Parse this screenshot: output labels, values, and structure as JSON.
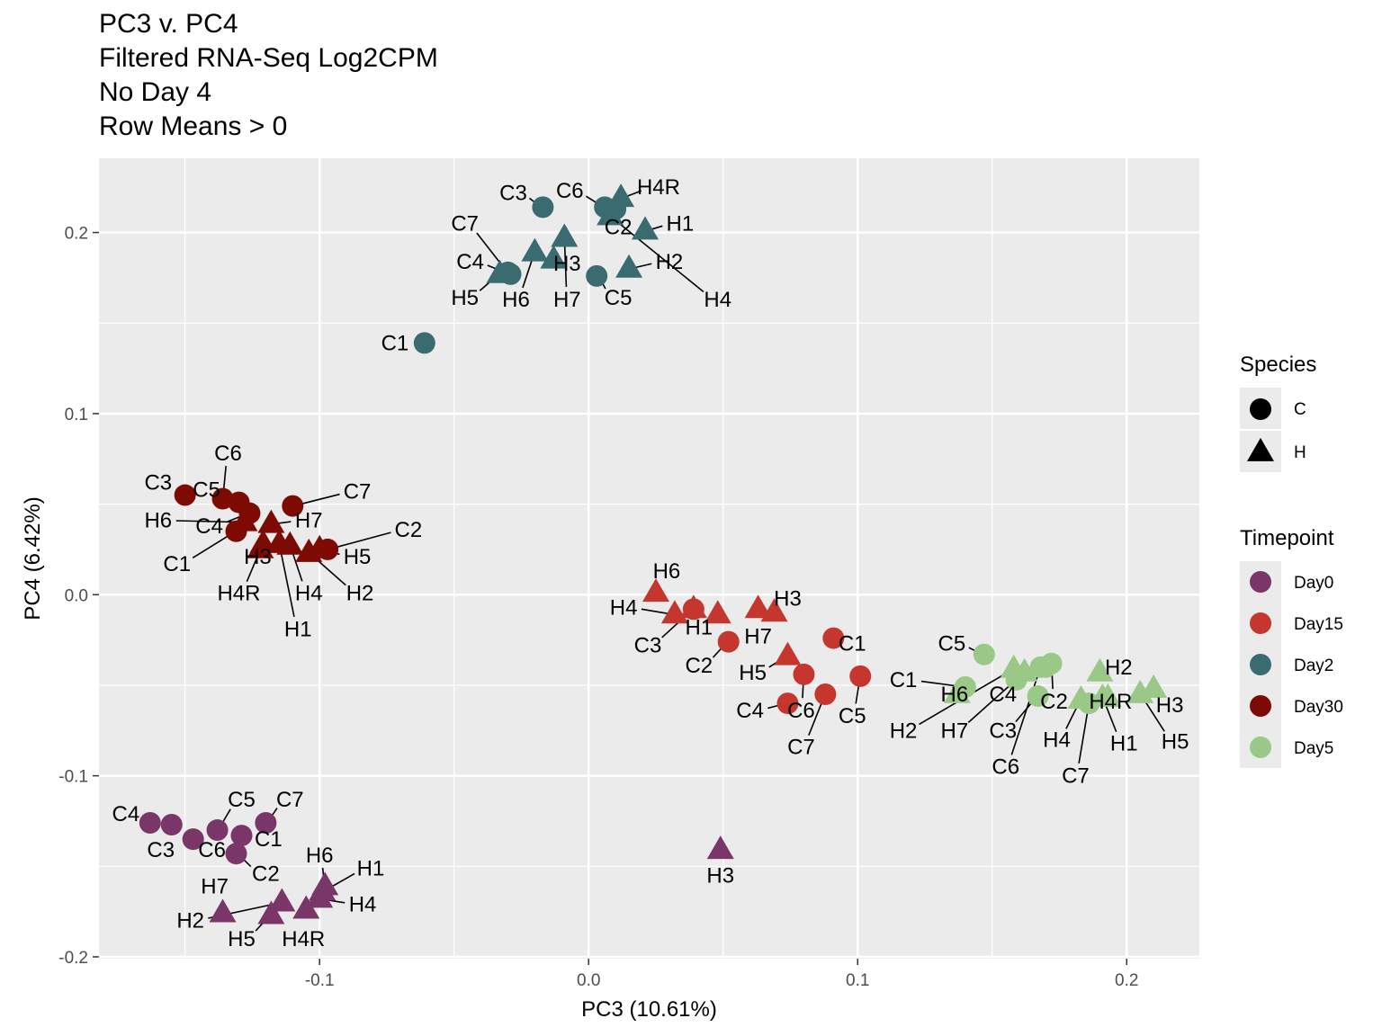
{
  "title_lines": [
    "PC3 v. PC4",
    "Filtered RNA-Seq Log2CPM",
    "No Day 4",
    "Row Means > 0"
  ],
  "colors": {
    "Day0": "#7a3569",
    "Day15": "#c5362e",
    "Day2": "#3a6b71",
    "Day30": "#7d0b04",
    "Day5": "#99c887",
    "panel": "#ebebeb",
    "grid": "#ffffff",
    "legend_key_bg": "#ebebeb"
  },
  "chart_data": {
    "type": "scatter",
    "xlabel": "PC3 (10.61%)",
    "ylabel": "PC4 (6.42%)",
    "xlim": [
      -0.182,
      0.227
    ],
    "ylim": [
      -0.201,
      0.241
    ],
    "xticks": [
      -0.1,
      0.0,
      0.1,
      0.2
    ],
    "xtick_labels": [
      "-0.1",
      "0.0",
      "0.1",
      "0.2"
    ],
    "yticks": [
      -0.2,
      -0.1,
      0.0,
      0.1,
      0.2
    ],
    "ytick_labels": [
      "-0.2",
      "-0.1",
      "0.0",
      "0.1",
      "0.2"
    ],
    "grid": true,
    "legend_position": "right",
    "legends": [
      {
        "title": "Species",
        "entries": [
          {
            "label": "C",
            "shape": "circle"
          },
          {
            "label": "H",
            "shape": "triangle"
          }
        ]
      },
      {
        "title": "Timepoint",
        "entries": [
          {
            "label": "Day0",
            "color_key": "Day0"
          },
          {
            "label": "Day15",
            "color_key": "Day15"
          },
          {
            "label": "Day2",
            "color_key": "Day2"
          },
          {
            "label": "Day30",
            "color_key": "Day30"
          },
          {
            "label": "Day5",
            "color_key": "Day5"
          }
        ]
      }
    ],
    "points": [
      {
        "label": "C3",
        "species": "C",
        "timepoint": "Day2",
        "x": -0.017,
        "y": 0.214,
        "lx": -0.028,
        "ly": 0.222
      },
      {
        "label": "C6",
        "species": "C",
        "timepoint": "Day2",
        "x": 0.006,
        "y": 0.214,
        "lx": -0.007,
        "ly": 0.223
      },
      {
        "label": "H4R",
        "species": "H",
        "timepoint": "Day2",
        "x": 0.012,
        "y": 0.219,
        "lx": 0.026,
        "ly": 0.225
      },
      {
        "label": "C2",
        "species": "C",
        "timepoint": "Day2",
        "x": 0.01,
        "y": 0.213,
        "lx": 0.011,
        "ly": 0.203
      },
      {
        "label": "H1",
        "species": "H",
        "timepoint": "Day2",
        "x": 0.021,
        "y": 0.201,
        "lx": 0.034,
        "ly": 0.205
      },
      {
        "label": "C7",
        "species": "C",
        "timepoint": "Day2",
        "x": -0.03,
        "y": 0.178,
        "lx": -0.046,
        "ly": 0.205
      },
      {
        "label": "H6",
        "species": "H",
        "timepoint": "Day2",
        "x": -0.02,
        "y": 0.189,
        "lx": -0.027,
        "ly": 0.163
      },
      {
        "label": "H7",
        "species": "H",
        "timepoint": "Day2",
        "x": -0.009,
        "y": 0.197,
        "lx": -0.008,
        "ly": 0.163
      },
      {
        "label": "C4",
        "species": "C",
        "timepoint": "Day2",
        "x": -0.029,
        "y": 0.177,
        "lx": -0.044,
        "ly": 0.184
      },
      {
        "label": "H5",
        "species": "H",
        "timepoint": "Day2",
        "x": -0.033,
        "y": 0.177,
        "lx": -0.046,
        "ly": 0.164
      },
      {
        "label": "H3",
        "species": "H",
        "timepoint": "Day2",
        "x": -0.013,
        "y": 0.185,
        "lx": -0.008,
        "ly": 0.183
      },
      {
        "label": "C5",
        "species": "C",
        "timepoint": "Day2",
        "x": 0.003,
        "y": 0.176,
        "lx": 0.011,
        "ly": 0.164
      },
      {
        "label": "H2",
        "species": "H",
        "timepoint": "Day2",
        "x": 0.015,
        "y": 0.18,
        "lx": 0.03,
        "ly": 0.184
      },
      {
        "label": "H4",
        "species": "H",
        "timepoint": "Day2",
        "x": 0.008,
        "y": 0.209,
        "lx": 0.048,
        "ly": 0.163
      },
      {
        "label": "C1",
        "species": "C",
        "timepoint": "Day2",
        "x": -0.061,
        "y": 0.139,
        "lx": -0.072,
        "ly": 0.139
      },
      {
        "label": "C3",
        "species": "C",
        "timepoint": "Day30",
        "x": -0.15,
        "y": 0.055,
        "lx": -0.16,
        "ly": 0.062
      },
      {
        "label": "C6",
        "species": "C",
        "timepoint": "Day30",
        "x": -0.136,
        "y": 0.053,
        "lx": -0.134,
        "ly": 0.078
      },
      {
        "label": "C5",
        "species": "C",
        "timepoint": "Day30",
        "x": -0.13,
        "y": 0.051,
        "lx": -0.142,
        "ly": 0.058
      },
      {
        "label": "C7",
        "species": "C",
        "timepoint": "Day30",
        "x": -0.11,
        "y": 0.049,
        "lx": -0.086,
        "ly": 0.057
      },
      {
        "label": "H6",
        "species": "H",
        "timepoint": "Day30",
        "x": -0.128,
        "y": 0.04,
        "lx": -0.16,
        "ly": 0.041
      },
      {
        "label": "C4",
        "species": "C",
        "timepoint": "Day30",
        "x": -0.126,
        "y": 0.045,
        "lx": -0.141,
        "ly": 0.038
      },
      {
        "label": "H7",
        "species": "H",
        "timepoint": "Day30",
        "x": -0.118,
        "y": 0.039,
        "lx": -0.104,
        "ly": 0.041
      },
      {
        "label": "C2",
        "species": "C",
        "timepoint": "Day30",
        "x": -0.097,
        "y": 0.025,
        "lx": -0.067,
        "ly": 0.036
      },
      {
        "label": "C1",
        "species": "C",
        "timepoint": "Day30",
        "x": -0.131,
        "y": 0.035,
        "lx": -0.153,
        "ly": 0.017
      },
      {
        "label": "H3",
        "species": "H",
        "timepoint": "Day30",
        "x": -0.122,
        "y": 0.025,
        "lx": -0.123,
        "ly": 0.021
      },
      {
        "label": "H5",
        "species": "H",
        "timepoint": "Day30",
        "x": -0.1,
        "y": 0.025,
        "lx": -0.086,
        "ly": 0.021
      },
      {
        "label": "H4R",
        "species": "H",
        "timepoint": "Day30",
        "x": -0.121,
        "y": 0.028,
        "lx": -0.13,
        "ly": 0.001
      },
      {
        "label": "H4",
        "species": "H",
        "timepoint": "Day30",
        "x": -0.111,
        "y": 0.027,
        "lx": -0.104,
        "ly": 0.001
      },
      {
        "label": "H2",
        "species": "H",
        "timepoint": "Day30",
        "x": -0.104,
        "y": 0.023,
        "lx": -0.085,
        "ly": 0.001
      },
      {
        "label": "H1",
        "species": "H",
        "timepoint": "Day30",
        "x": -0.115,
        "y": 0.028,
        "lx": -0.108,
        "ly": -0.019
      },
      {
        "label": "H6",
        "species": "H",
        "timepoint": "Day15",
        "x": 0.025,
        "y": 0.001,
        "lx": 0.029,
        "ly": 0.013
      },
      {
        "label": "H4",
        "species": "H",
        "timepoint": "Day15",
        "x": 0.032,
        "y": -0.011,
        "lx": 0.013,
        "ly": -0.007
      },
      {
        "label": "H1",
        "species": "H",
        "timepoint": "Day15",
        "x": 0.039,
        "y": -0.008,
        "lx": 0.041,
        "ly": -0.018
      },
      {
        "label": "C3",
        "species": "C",
        "timepoint": "Day15",
        "x": 0.039,
        "y": -0.008,
        "lx": 0.022,
        "ly": -0.028
      },
      {
        "label": "H3",
        "species": "H",
        "timepoint": "Day15",
        "x": 0.069,
        "y": -0.01,
        "lx": 0.074,
        "ly": -0.002
      },
      {
        "label": "H7",
        "species": "H",
        "timepoint": "Day15",
        "x": 0.063,
        "y": -0.008,
        "lx": 0.063,
        "ly": -0.023
      },
      {
        "label": "C2",
        "species": "C",
        "timepoint": "Day15",
        "x": 0.052,
        "y": -0.026,
        "lx": 0.041,
        "ly": -0.039
      },
      {
        "label": "H5",
        "species": "H",
        "timepoint": "Day15",
        "x": 0.074,
        "y": -0.034,
        "lx": 0.061,
        "ly": -0.043
      },
      {
        "label": "H1",
        "species": "H",
        "timepoint": "Day15",
        "x": 0.048,
        "y": -0.011,
        "lx": 0.048,
        "ly": -0.011,
        "nolabel": true
      },
      {
        "label": "C1",
        "species": "C",
        "timepoint": "Day15",
        "x": 0.091,
        "y": -0.024,
        "lx": 0.098,
        "ly": -0.027
      },
      {
        "label": "C4",
        "species": "C",
        "timepoint": "Day15",
        "x": 0.074,
        "y": -0.06,
        "lx": 0.06,
        "ly": -0.064
      },
      {
        "label": "C6",
        "species": "C",
        "timepoint": "Day15",
        "x": 0.08,
        "y": -0.044,
        "lx": 0.079,
        "ly": -0.064
      },
      {
        "label": "C5",
        "species": "C",
        "timepoint": "Day15",
        "x": 0.101,
        "y": -0.045,
        "lx": 0.098,
        "ly": -0.067
      },
      {
        "label": "C7",
        "species": "C",
        "timepoint": "Day15",
        "x": 0.088,
        "y": -0.055,
        "lx": 0.079,
        "ly": -0.084
      },
      {
        "label": "C5",
        "species": "C",
        "timepoint": "Day5",
        "x": 0.147,
        "y": -0.033,
        "lx": 0.135,
        "ly": -0.027
      },
      {
        "label": "C1",
        "species": "C",
        "timepoint": "Day5",
        "x": 0.14,
        "y": -0.051,
        "lx": 0.117,
        "ly": -0.047
      },
      {
        "label": "H6",
        "species": "H",
        "timepoint": "Day5",
        "x": 0.137,
        "y": -0.055,
        "lx": 0.136,
        "ly": -0.055
      },
      {
        "label": "C4",
        "species": "C",
        "timepoint": "Day5",
        "x": 0.159,
        "y": -0.047,
        "lx": 0.154,
        "ly": -0.055
      },
      {
        "label": "C2",
        "species": "C",
        "timepoint": "Day5",
        "x": 0.172,
        "y": -0.038,
        "lx": 0.173,
        "ly": -0.059
      },
      {
        "label": "H2",
        "species": "H",
        "timepoint": "Day5",
        "x": 0.19,
        "y": -0.043,
        "lx": 0.197,
        "ly": -0.04
      },
      {
        "label": "H2",
        "species": "H",
        "timepoint": "Day5",
        "x": 0.158,
        "y": -0.041,
        "lx": 0.117,
        "ly": -0.075
      },
      {
        "label": "H7",
        "species": "H",
        "timepoint": "Day5",
        "x": 0.162,
        "y": -0.043,
        "lx": 0.136,
        "ly": -0.075
      },
      {
        "label": "C3",
        "species": "C",
        "timepoint": "Day5",
        "x": 0.167,
        "y": -0.056,
        "lx": 0.154,
        "ly": -0.075
      },
      {
        "label": "H4R",
        "species": "H",
        "timepoint": "Day5",
        "x": 0.193,
        "y": -0.057,
        "lx": 0.194,
        "ly": -0.059
      },
      {
        "label": "H3",
        "species": "H",
        "timepoint": "Day5",
        "x": 0.21,
        "y": -0.052,
        "lx": 0.216,
        "ly": -0.061
      },
      {
        "label": "H4",
        "species": "H",
        "timepoint": "Day5",
        "x": 0.183,
        "y": -0.058,
        "lx": 0.174,
        "ly": -0.08
      },
      {
        "label": "H1",
        "species": "H",
        "timepoint": "Day5",
        "x": 0.191,
        "y": -0.057,
        "lx": 0.199,
        "ly": -0.082
      },
      {
        "label": "H5",
        "species": "H",
        "timepoint": "Day5",
        "x": 0.205,
        "y": -0.055,
        "lx": 0.218,
        "ly": -0.081
      },
      {
        "label": "C6",
        "species": "C",
        "timepoint": "Day5",
        "x": 0.168,
        "y": -0.04,
        "lx": 0.155,
        "ly": -0.095
      },
      {
        "label": "C7",
        "species": "C",
        "timepoint": "Day5",
        "x": 0.186,
        "y": -0.06,
        "lx": 0.181,
        "ly": -0.1
      },
      {
        "label": "C3",
        "species": "C",
        "timepoint": "Day5",
        "x": 0.17,
        "y": -0.04,
        "lx": 0.17,
        "ly": -0.04,
        "nolabel": true
      },
      {
        "label": "C4",
        "species": "C",
        "timepoint": "Day0",
        "x": -0.163,
        "y": -0.126,
        "lx": -0.172,
        "ly": -0.121
      },
      {
        "label": "C3",
        "species": "C",
        "timepoint": "Day0",
        "x": -0.155,
        "y": -0.127,
        "lx": -0.159,
        "ly": -0.141
      },
      {
        "label": "C5",
        "species": "C",
        "timepoint": "Day0",
        "x": -0.138,
        "y": -0.13,
        "lx": -0.129,
        "ly": -0.113
      },
      {
        "label": "C7",
        "species": "C",
        "timepoint": "Day0",
        "x": -0.12,
        "y": -0.126,
        "lx": -0.111,
        "ly": -0.113
      },
      {
        "label": "C6",
        "species": "C",
        "timepoint": "Day0",
        "x": -0.147,
        "y": -0.135,
        "lx": -0.14,
        "ly": -0.141
      },
      {
        "label": "C1",
        "species": "C",
        "timepoint": "Day0",
        "x": -0.129,
        "y": -0.133,
        "lx": -0.119,
        "ly": -0.135
      },
      {
        "label": "C2",
        "species": "C",
        "timepoint": "Day0",
        "x": -0.131,
        "y": -0.143,
        "lx": -0.12,
        "ly": -0.154
      },
      {
        "label": "H6",
        "species": "H",
        "timepoint": "Day0",
        "x": -0.098,
        "y": -0.161,
        "lx": -0.1,
        "ly": -0.144
      },
      {
        "label": "H1",
        "species": "H",
        "timepoint": "Day0",
        "x": -0.099,
        "y": -0.164,
        "lx": -0.081,
        "ly": -0.151
      },
      {
        "label": "H7",
        "species": "H",
        "timepoint": "Day0",
        "x": -0.136,
        "y": -0.176,
        "lx": -0.139,
        "ly": -0.161
      },
      {
        "label": "H4",
        "species": "H",
        "timepoint": "Day0",
        "x": -0.1,
        "y": -0.168,
        "lx": -0.084,
        "ly": -0.171
      },
      {
        "label": "H2",
        "species": "H",
        "timepoint": "Day0",
        "x": -0.114,
        "y": -0.17,
        "lx": -0.148,
        "ly": -0.18
      },
      {
        "label": "H5",
        "species": "H",
        "timepoint": "Day0",
        "x": -0.118,
        "y": -0.177,
        "lx": -0.129,
        "ly": -0.19
      },
      {
        "label": "H4R",
        "species": "H",
        "timepoint": "Day0",
        "x": -0.105,
        "y": -0.174,
        "lx": -0.106,
        "ly": -0.19
      },
      {
        "label": "H3",
        "species": "H",
        "timepoint": "Day0",
        "x": 0.049,
        "y": -0.141,
        "lx": 0.049,
        "ly": -0.155
      }
    ]
  }
}
